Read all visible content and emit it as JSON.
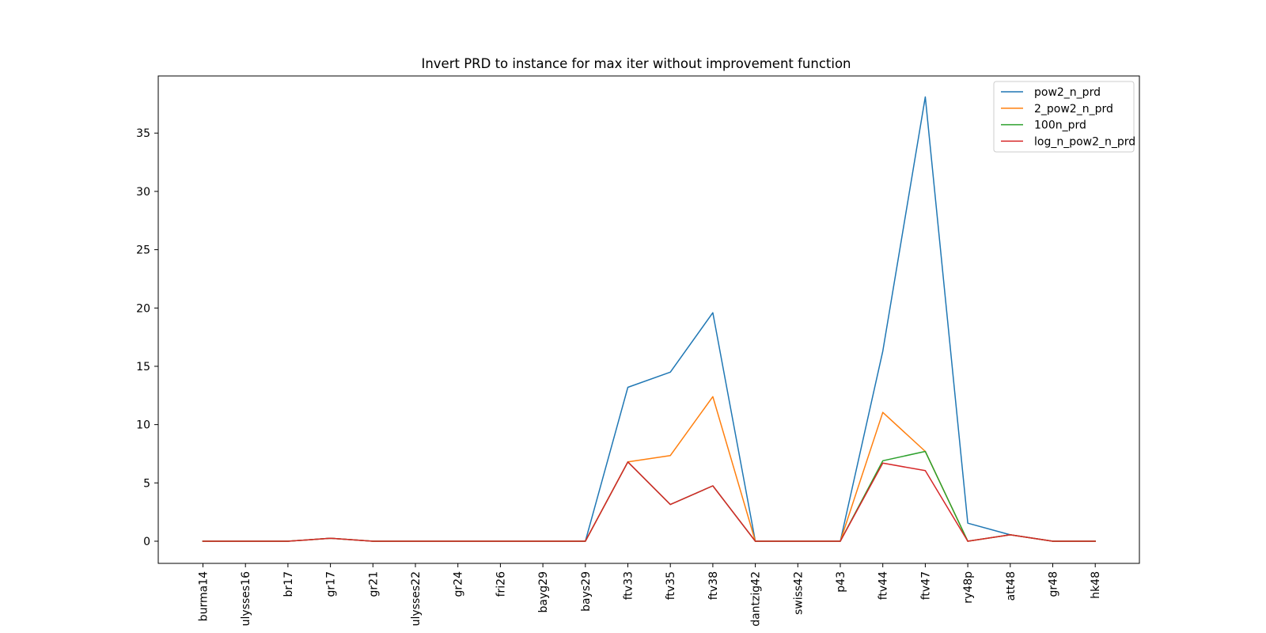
{
  "chart_data": {
    "type": "line",
    "title": "Invert PRD to instance for max iter without improvement function",
    "xlabel": "",
    "ylabel": "",
    "categories": [
      "burma14",
      "ulysses16",
      "br17",
      "gr17",
      "gr21",
      "ulysses22",
      "gr24",
      "fri26",
      "bayg29",
      "bays29",
      "ftv33",
      "ftv35",
      "ftv38",
      "dantzig42",
      "swiss42",
      "p43",
      "ftv44",
      "ftv47",
      "ry48p",
      "att48",
      "gr48",
      "hk48"
    ],
    "yticks": [
      0,
      5,
      10,
      15,
      20,
      25,
      30,
      35
    ],
    "ylim": [
      -1.9,
      39.9
    ],
    "grid": false,
    "legend_position": "top-right",
    "series": [
      {
        "name": "pow2_n_prd",
        "color": "#1f77b4",
        "values": [
          0,
          0,
          0,
          0.25,
          0,
          0,
          0,
          0,
          0,
          0,
          13.2,
          14.5,
          19.6,
          0,
          0,
          0,
          16.3,
          38.1,
          1.55,
          0.55,
          0,
          0
        ]
      },
      {
        "name": "2_pow2_n_prd",
        "color": "#ff7f0e",
        "values": [
          0,
          0,
          0,
          0.25,
          0,
          0,
          0,
          0,
          0,
          0,
          6.8,
          7.35,
          12.4,
          0,
          0,
          0,
          11.05,
          7.7,
          0,
          0.55,
          0,
          0
        ]
      },
      {
        "name": "100n_prd",
        "color": "#2ca02c",
        "values": [
          0,
          0,
          0,
          0.25,
          0,
          0,
          0,
          0,
          0,
          0,
          6.8,
          3.15,
          4.75,
          0,
          0,
          0,
          6.9,
          7.7,
          0,
          0.55,
          0,
          0
        ]
      },
      {
        "name": "log_n_pow2_n_prd",
        "color": "#d62728",
        "values": [
          0,
          0,
          0,
          0.25,
          0,
          0,
          0,
          0,
          0,
          0,
          6.8,
          3.15,
          4.75,
          0,
          0,
          0,
          6.7,
          6.05,
          0,
          0.55,
          0,
          0
        ]
      }
    ]
  }
}
